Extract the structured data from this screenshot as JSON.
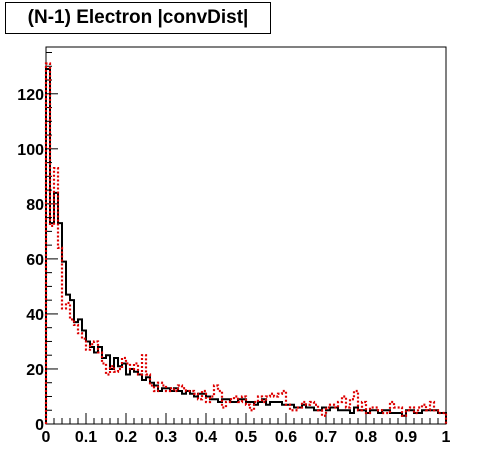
{
  "chart_data": {
    "type": "line",
    "title": "(N-1) Electron |convDist|",
    "xlabel": "",
    "ylabel": "",
    "xlim": [
      0,
      1
    ],
    "ylim": [
      0,
      137
    ],
    "x_ticks": [
      "0",
      "0.1",
      "0.2",
      "0.3",
      "0.4",
      "0.5",
      "0.6",
      "0.7",
      "0.8",
      "0.9",
      "1"
    ],
    "y_ticks": [
      "0",
      "20",
      "40",
      "60",
      "80",
      "100",
      "120"
    ],
    "grid": false,
    "legend": "none",
    "bin_width": 0.01,
    "series": [
      {
        "style": "solid",
        "color": "#000000",
        "values": [
          129,
          73,
          84,
          73,
          59,
          47,
          45,
          37,
          38,
          34,
          30,
          28,
          26,
          28,
          24,
          25,
          20,
          24,
          21,
          22,
          18,
          20,
          19,
          18,
          16,
          17,
          15,
          14,
          12,
          13,
          13,
          12,
          13,
          12,
          11,
          12,
          11,
          10,
          11,
          11,
          10,
          9,
          9,
          8,
          9,
          9,
          8,
          8,
          9,
          9,
          8,
          8,
          7,
          8,
          9,
          7,
          8,
          8,
          8,
          7,
          7,
          7,
          6,
          6,
          7,
          6,
          6,
          5,
          5,
          6,
          5,
          6,
          6,
          5,
          5,
          5,
          4,
          6,
          5,
          5,
          4,
          5,
          5,
          4,
          5,
          5,
          4,
          4,
          4,
          3,
          5,
          5,
          4,
          4,
          5,
          5,
          5,
          5,
          4,
          4
        ]
      },
      {
        "style": "dotted",
        "color": "#dd0000",
        "values": [
          131,
          72,
          93,
          64,
          42,
          44,
          38,
          36,
          33,
          31,
          27,
          29,
          30,
          26,
          22,
          18,
          21,
          19,
          20,
          24,
          22,
          20,
          22,
          18,
          25,
          18,
          14,
          12,
          15,
          14,
          12,
          13,
          12,
          14,
          13,
          12,
          12,
          11,
          9,
          12,
          8,
          10,
          14,
          12,
          6,
          8,
          9,
          10,
          8,
          10,
          7,
          5,
          8,
          10,
          8,
          10,
          11,
          10,
          11,
          12,
          7,
          5,
          5,
          6,
          8,
          7,
          8,
          7,
          5,
          3,
          6,
          7,
          6,
          8,
          10,
          6,
          9,
          12,
          5,
          8,
          4,
          6,
          6,
          5,
          4,
          4,
          8,
          6,
          6,
          3,
          5,
          6,
          4,
          6,
          7,
          5,
          8,
          5,
          4,
          4
        ]
      }
    ]
  }
}
